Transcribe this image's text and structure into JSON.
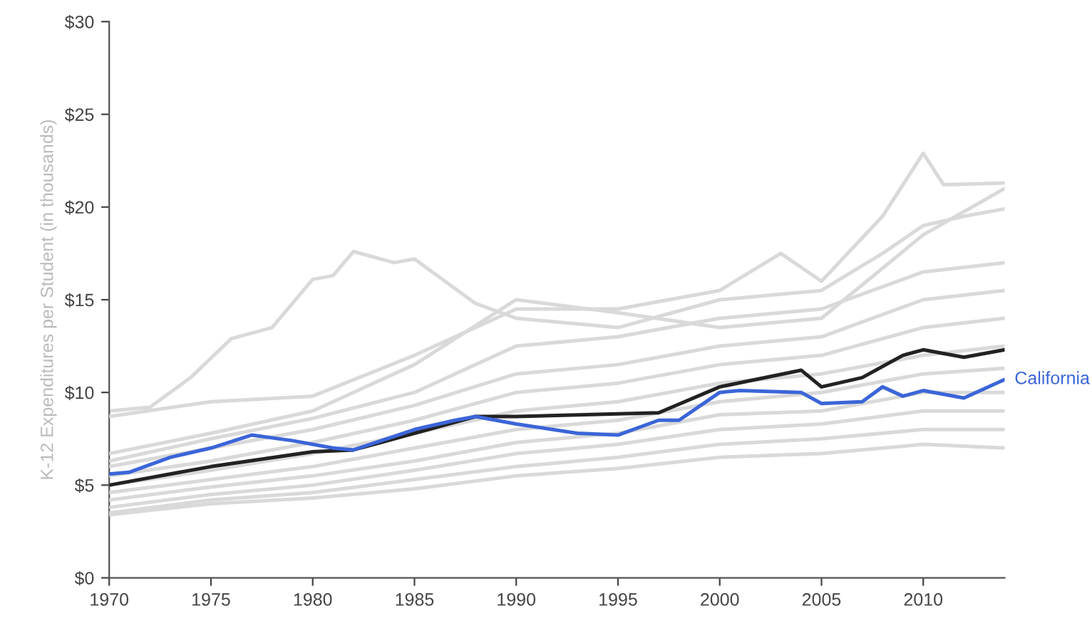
{
  "chart_data": {
    "type": "line",
    "ylabel": "K-12 Expenditures per Student (in thousands)",
    "xlim": [
      1970,
      2014
    ],
    "xticks": [
      1970,
      1975,
      1980,
      1985,
      1990,
      1995,
      2000,
      2005,
      2010
    ],
    "ylim": [
      0,
      30
    ],
    "yticks": [
      {
        "value": 0,
        "label": "$0"
      },
      {
        "value": 5,
        "label": "$5"
      },
      {
        "value": 10,
        "label": "$10"
      },
      {
        "value": 15,
        "label": "$15"
      },
      {
        "value": 20,
        "label": "$20"
      },
      {
        "value": 25,
        "label": "$25"
      },
      {
        "value": 30,
        "label": "$30"
      }
    ],
    "grid": false,
    "legend": false,
    "marker": "none",
    "line_style": "solid",
    "series": [
      {
        "color": "#d9d9d9",
        "x": [
          1970,
          1972,
          1974,
          1976,
          1978,
          1980,
          1981,
          1982,
          1984,
          1985,
          1988,
          1990,
          1995,
          2000,
          2005,
          2008,
          2010,
          2012,
          2014
        ],
        "values": [
          9.0,
          9.2,
          10.8,
          12.9,
          13.5,
          16.1,
          16.3,
          17.6,
          17.0,
          17.2,
          14.8,
          14.0,
          13.5,
          15.0,
          15.5,
          17.5,
          19.0,
          19.5,
          19.9
        ]
      },
      {
        "color": "#d9d9d9",
        "x": [
          1970,
          1975,
          1980,
          1985,
          1990,
          1995,
          2000,
          2003,
          2005,
          2008,
          2010,
          2011,
          2014
        ],
        "values": [
          8.7,
          9.5,
          9.8,
          12.0,
          14.5,
          14.5,
          15.5,
          17.5,
          16.0,
          19.5,
          22.9,
          21.2,
          21.3
        ]
      },
      {
        "color": "#d9d9d9",
        "x": [
          1970,
          1975,
          1980,
          1985,
          1990,
          1995,
          2000,
          2005,
          2010,
          2014
        ],
        "values": [
          6.7,
          7.8,
          9.0,
          11.5,
          15.0,
          14.3,
          13.5,
          14.0,
          18.5,
          21.0
        ]
      },
      {
        "color": "#d9d9d9",
        "x": [
          1970,
          1975,
          1980,
          1985,
          1990,
          1995,
          2000,
          2005,
          2010,
          2014
        ],
        "values": [
          6.3,
          7.5,
          8.6,
          10.0,
          12.5,
          13.0,
          14.0,
          14.5,
          16.5,
          17.0
        ]
      },
      {
        "color": "#d9d9d9",
        "x": [
          1970,
          1975,
          1980,
          1985,
          1990,
          1995,
          2000,
          2005,
          2010,
          2014
        ],
        "values": [
          6.0,
          7.0,
          8.0,
          9.3,
          11.0,
          11.5,
          12.5,
          13.0,
          15.0,
          15.5
        ]
      },
      {
        "color": "#d9d9d9",
        "x": [
          1970,
          1975,
          1980,
          1985,
          1990,
          1995,
          2000,
          2005,
          2010,
          2014
        ],
        "values": [
          5.5,
          6.3,
          7.3,
          8.5,
          10.0,
          10.5,
          11.5,
          12.0,
          13.5,
          14.0
        ]
      },
      {
        "color": "#d9d9d9",
        "x": [
          1970,
          1975,
          1980,
          1985,
          1990,
          1995,
          2000,
          2005,
          2010,
          2014
        ],
        "values": [
          5.0,
          5.8,
          6.7,
          7.8,
          9.0,
          9.5,
          10.5,
          11.0,
          12.0,
          12.5
        ]
      },
      {
        "color": "#d9d9d9",
        "x": [
          1970,
          1975,
          1980,
          1985,
          1990,
          1995,
          2000,
          2005,
          2010,
          2014
        ],
        "values": [
          4.6,
          5.3,
          6.0,
          7.0,
          8.0,
          8.5,
          9.5,
          10.0,
          11.0,
          11.3
        ]
      },
      {
        "color": "#d9d9d9",
        "x": [
          1970,
          1975,
          1980,
          1985,
          1990,
          1995,
          2000,
          2005,
          2010,
          2014
        ],
        "values": [
          4.2,
          4.9,
          5.5,
          6.3,
          7.3,
          7.8,
          8.8,
          9.0,
          10.0,
          10.0
        ]
      },
      {
        "color": "#d9d9d9",
        "x": [
          1970,
          1975,
          1980,
          1985,
          1990,
          1995,
          2000,
          2005,
          2010,
          2014
        ],
        "values": [
          3.8,
          4.5,
          5.0,
          5.8,
          6.7,
          7.2,
          8.0,
          8.3,
          9.0,
          9.0
        ]
      },
      {
        "color": "#d9d9d9",
        "x": [
          1970,
          1975,
          1980,
          1985,
          1990,
          1995,
          2000,
          2005,
          2010,
          2014
        ],
        "values": [
          3.5,
          4.2,
          4.6,
          5.3,
          6.0,
          6.5,
          7.2,
          7.5,
          8.0,
          8.0
        ]
      },
      {
        "color": "#d9d9d9",
        "x": [
          1970,
          1975,
          1980,
          1985,
          1990,
          1995,
          2000,
          2005,
          2010,
          2014
        ],
        "values": [
          3.4,
          4.0,
          4.3,
          4.8,
          5.5,
          5.9,
          6.5,
          6.7,
          7.2,
          7.0
        ]
      },
      {
        "color": "#222222",
        "x": [
          1970,
          1975,
          1980,
          1982,
          1985,
          1988,
          1990,
          1997,
          2000,
          2004,
          2005,
          2007,
          2009,
          2010,
          2012,
          2014
        ],
        "values": [
          5.0,
          6.0,
          6.8,
          6.9,
          7.8,
          8.7,
          8.7,
          8.9,
          10.3,
          11.2,
          10.3,
          10.8,
          12.0,
          12.3,
          11.9,
          12.3
        ]
      },
      {
        "name": "California",
        "color": "#3b65d8",
        "x": [
          1970,
          1971,
          1973,
          1975,
          1977,
          1979,
          1981,
          1982,
          1985,
          1987,
          1988,
          1990,
          1993,
          1995,
          1997,
          1998,
          2000,
          2001,
          2004,
          2005,
          2007,
          2008,
          2009,
          2010,
          2012,
          2014
        ],
        "values": [
          5.6,
          5.7,
          6.5,
          7.0,
          7.7,
          7.4,
          7.0,
          6.9,
          8.0,
          8.5,
          8.7,
          8.3,
          7.8,
          7.7,
          8.5,
          8.5,
          10.0,
          10.1,
          10.0,
          9.4,
          9.5,
          10.3,
          9.8,
          10.1,
          9.7,
          10.7
        ]
      }
    ]
  }
}
